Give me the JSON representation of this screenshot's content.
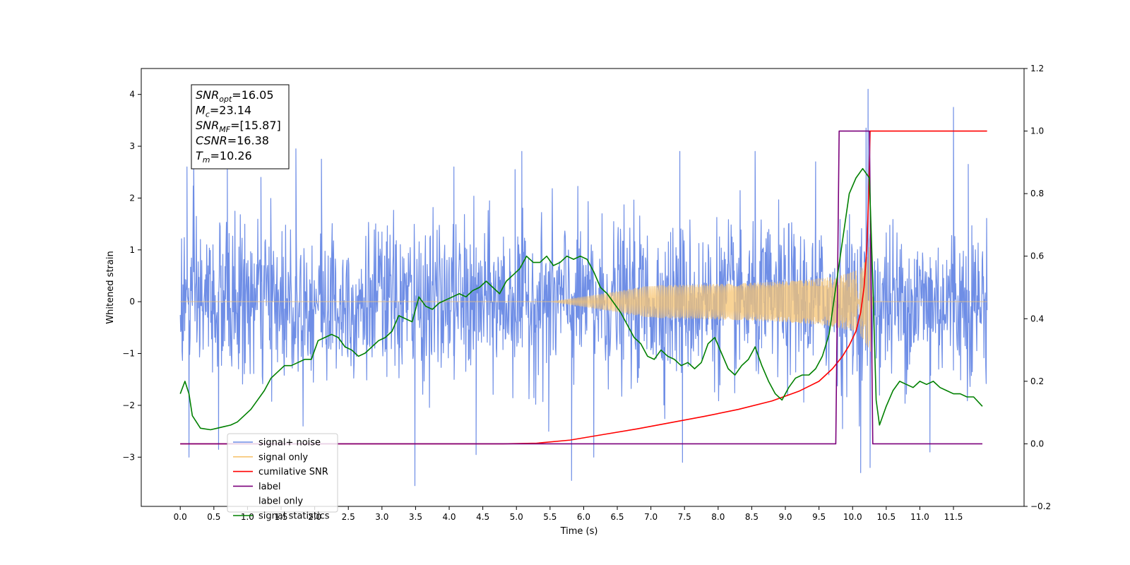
{
  "chart_data": {
    "type": "line",
    "xlabel": "Time (s)",
    "ylabel": "Whitened strain",
    "xlim": [
      -0.58,
      12.55
    ],
    "ylim": [
      -3.95,
      4.5
    ],
    "y2lim": [
      -0.2,
      1.2
    ],
    "x_ticks": [
      "0.0",
      "0.5",
      "1.0",
      "1.5",
      "2.0",
      "2.5",
      "3.0",
      "3.5",
      "4.0",
      "4.5",
      "5.0",
      "5.5",
      "6.0",
      "6.5",
      "7.0",
      "7.5",
      "8.0",
      "8.5",
      "9.0",
      "9.5",
      "10.0",
      "10.5",
      "11.0",
      "11.5"
    ],
    "y_ticks": [
      "−3",
      "−2",
      "−1",
      "0",
      "1",
      "2",
      "3",
      "4"
    ],
    "y2_ticks": [
      "−0.2",
      "0.0",
      "0.2",
      "0.4",
      "0.6",
      "0.8",
      "1.0",
      "1.2"
    ],
    "grid": false,
    "legend_position": "lower-left",
    "annotation": {
      "lines": [
        {
          "base": "SNR",
          "sub": "opt",
          "value": "=16.05"
        },
        {
          "base": "M",
          "sub": "c",
          "value": "=23.14"
        },
        {
          "base": "SNR",
          "sub": "MF",
          "value": "=[15.87]"
        },
        {
          "base": "CSNR",
          "sub": "",
          "value": "=16.38"
        },
        {
          "base": "T",
          "sub": "m",
          "value": "=10.26"
        }
      ]
    },
    "series": [
      {
        "name": "signal+ noise",
        "color": "#6f8ee6",
        "axis": "left",
        "kind": "noise",
        "x_start": 0.0,
        "x_end": 12.0,
        "amplitude_sd": 0.75,
        "spikes": [
          {
            "x": 0.1,
            "y": 2.6
          },
          {
            "x": 0.13,
            "y": -3.0
          },
          {
            "x": 0.2,
            "y": 2.75
          },
          {
            "x": 0.57,
            "y": -2.85
          },
          {
            "x": 0.7,
            "y": 2.55
          },
          {
            "x": 1.2,
            "y": 2.4
          },
          {
            "x": 1.72,
            "y": 2.95
          },
          {
            "x": 2.1,
            "y": 2.75
          },
          {
            "x": 3.49,
            "y": -3.55
          },
          {
            "x": 4.07,
            "y": 2.6
          },
          {
            "x": 4.4,
            "y": -2.95
          },
          {
            "x": 4.98,
            "y": 2.55
          },
          {
            "x": 5.08,
            "y": 2.9
          },
          {
            "x": 5.48,
            "y": -2.5
          },
          {
            "x": 5.82,
            "y": -3.45
          },
          {
            "x": 6.15,
            "y": -3.0
          },
          {
            "x": 7.47,
            "y": -3.1
          },
          {
            "x": 7.43,
            "y": 2.9
          },
          {
            "x": 8.55,
            "y": 2.9
          },
          {
            "x": 9.45,
            "y": 2.7
          },
          {
            "x": 9.85,
            "y": -2.45
          },
          {
            "x": 10.12,
            "y": -3.3
          },
          {
            "x": 10.2,
            "y": 3.35
          },
          {
            "x": 10.23,
            "y": 4.1
          },
          {
            "x": 10.26,
            "y": -3.2
          },
          {
            "x": 11.15,
            "y": -2.9
          },
          {
            "x": 11.5,
            "y": 3.75
          },
          {
            "x": 11.72,
            "y": 2.65
          }
        ]
      },
      {
        "name": "signal only",
        "color": "#f7c471",
        "axis": "left",
        "kind": "chirp",
        "x_start": 0.0,
        "x_end": 12.0,
        "merger_time": 10.26,
        "peak_amplitude": 1.55
      },
      {
        "name": "cumilative SNR",
        "color": "#ff0000",
        "axis": "right",
        "x": [
          0.0,
          4.8,
          5.3,
          5.8,
          6.3,
          6.8,
          7.3,
          7.8,
          8.3,
          8.8,
          9.2,
          9.5,
          9.7,
          9.85,
          9.95,
          10.05,
          10.12,
          10.17,
          10.21,
          10.24,
          10.26,
          10.3,
          12.0
        ],
        "y": [
          0.0,
          0.0,
          0.002,
          0.012,
          0.03,
          0.048,
          0.068,
          0.088,
          0.11,
          0.137,
          0.168,
          0.2,
          0.24,
          0.28,
          0.315,
          0.36,
          0.42,
          0.5,
          0.62,
          0.8,
          1.0,
          1.0,
          1.0
        ]
      },
      {
        "name": "label",
        "color": "#7b007b",
        "axis": "right",
        "x": [
          0.0,
          9.75,
          9.8,
          10.25,
          10.3,
          11.93
        ],
        "y": [
          0.0,
          0.0,
          1.0,
          1.0,
          0.0,
          0.0
        ]
      },
      {
        "name": "label only",
        "color": "#c8c8c8",
        "axis": "right",
        "hidden": true,
        "x": [],
        "y": []
      },
      {
        "name": "signal statistics",
        "color": "#008000",
        "axis": "right",
        "x": [
          0.0,
          0.07,
          0.13,
          0.18,
          0.3,
          0.45,
          0.55,
          0.65,
          0.75,
          0.85,
          0.95,
          1.05,
          1.15,
          1.25,
          1.35,
          1.45,
          1.55,
          1.65,
          1.75,
          1.85,
          1.95,
          2.05,
          2.15,
          2.25,
          2.35,
          2.45,
          2.55,
          2.65,
          2.75,
          2.85,
          2.95,
          3.05,
          3.15,
          3.25,
          3.35,
          3.45,
          3.55,
          3.65,
          3.75,
          3.85,
          3.95,
          4.05,
          4.15,
          4.25,
          4.35,
          4.45,
          4.55,
          4.65,
          4.75,
          4.85,
          4.95,
          5.05,
          5.15,
          5.25,
          5.35,
          5.45,
          5.55,
          5.65,
          5.75,
          5.85,
          5.95,
          6.05,
          6.15,
          6.25,
          6.35,
          6.45,
          6.55,
          6.65,
          6.75,
          6.85,
          6.95,
          7.05,
          7.15,
          7.25,
          7.35,
          7.45,
          7.55,
          7.65,
          7.75,
          7.85,
          7.95,
          8.05,
          8.15,
          8.25,
          8.35,
          8.45,
          8.55,
          8.65,
          8.75,
          8.85,
          8.95,
          9.05,
          9.15,
          9.25,
          9.35,
          9.45,
          9.55,
          9.65,
          9.75,
          9.85,
          9.95,
          10.05,
          10.15,
          10.25,
          10.3,
          10.35,
          10.4,
          10.5,
          10.6,
          10.7,
          10.8,
          10.9,
          11.0,
          11.1,
          11.2,
          11.3,
          11.4,
          11.5,
          11.6,
          11.7,
          11.8,
          11.93
        ],
        "y": [
          0.16,
          0.2,
          0.16,
          0.09,
          0.05,
          0.045,
          0.05,
          0.055,
          0.06,
          0.07,
          0.09,
          0.11,
          0.14,
          0.17,
          0.21,
          0.23,
          0.25,
          0.25,
          0.26,
          0.27,
          0.27,
          0.33,
          0.34,
          0.35,
          0.34,
          0.31,
          0.3,
          0.28,
          0.29,
          0.31,
          0.33,
          0.34,
          0.36,
          0.41,
          0.4,
          0.39,
          0.47,
          0.44,
          0.43,
          0.45,
          0.46,
          0.47,
          0.48,
          0.47,
          0.49,
          0.5,
          0.52,
          0.5,
          0.48,
          0.52,
          0.54,
          0.56,
          0.6,
          0.58,
          0.58,
          0.6,
          0.57,
          0.58,
          0.6,
          0.59,
          0.6,
          0.59,
          0.55,
          0.5,
          0.48,
          0.45,
          0.42,
          0.38,
          0.34,
          0.32,
          0.28,
          0.27,
          0.3,
          0.28,
          0.27,
          0.25,
          0.26,
          0.24,
          0.26,
          0.32,
          0.34,
          0.29,
          0.24,
          0.22,
          0.25,
          0.27,
          0.31,
          0.25,
          0.2,
          0.16,
          0.14,
          0.18,
          0.21,
          0.22,
          0.22,
          0.24,
          0.28,
          0.35,
          0.5,
          0.65,
          0.8,
          0.85,
          0.88,
          0.85,
          0.52,
          0.14,
          0.06,
          0.12,
          0.17,
          0.2,
          0.19,
          0.18,
          0.2,
          0.19,
          0.2,
          0.18,
          0.17,
          0.16,
          0.16,
          0.15,
          0.15,
          0.12
        ]
      }
    ]
  }
}
